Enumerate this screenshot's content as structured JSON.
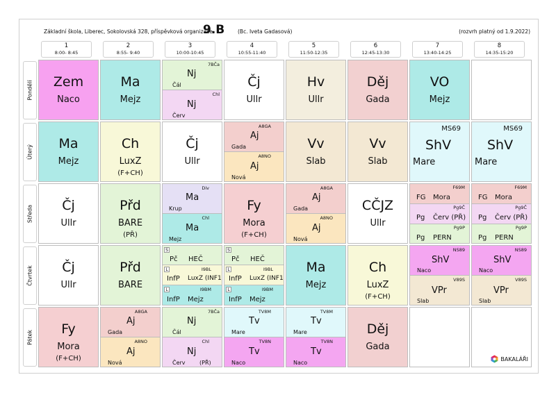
{
  "header": {
    "school": "Základní škola, Liberec, Sokolovská 328, příspěvková organizace",
    "class_name": "9.B",
    "teacher": "(Bc. Iveta Gadasová)",
    "valid_from": "(rozvrh platný od 1.9.2022)"
  },
  "periods": [
    {
      "num": "1",
      "time": "8:00- 8:45"
    },
    {
      "num": "2",
      "time": "8:55- 9:40"
    },
    {
      "num": "3",
      "time": "10:00-10:45"
    },
    {
      "num": "4",
      "time": "10:55-11:40"
    },
    {
      "num": "5",
      "time": "11:50-12:35"
    },
    {
      "num": "6",
      "time": "12:45-13:30"
    },
    {
      "num": "7",
      "time": "13:40-14:25"
    },
    {
      "num": "8",
      "time": "14:35-15:20"
    }
  ],
  "days": [
    "Pondělí",
    "Úterý",
    "Středa",
    "Čtvrtek",
    "Pátek"
  ],
  "colors": {
    "zem": "#f7a1f0",
    "ma": "#aeeae7",
    "ch": "#f8f8d8",
    "cj": "#ffffff",
    "hv": "#f3eede",
    "dej": "#f2d0d0",
    "vo": "#aeeae7",
    "aj_a": "#f3cfcd",
    "aj_b": "#fbe6bf",
    "vv": "#f3e8d3",
    "shv": "#e0f8fb",
    "fy": "#f5cfd1",
    "prd": "#e3f4d7",
    "nj_a": "#e3f4d7",
    "nj_b": "#f3d7f3",
    "ma_div": "#e5e0f5",
    "pc": "#e3f4d7",
    "infp_a": "#f8f8d8",
    "infp_b": "#aeeae7",
    "shv_nsp": "#f4a6f1",
    "vpr": "#f3e8d3",
    "tv_a": "#e0f8fb",
    "tv_b": "#f4a6f1",
    "fg": "#f3cfcd",
    "pg_a": "#f3d7f3",
    "pg_b": "#e3f4d7"
  },
  "timetable": {
    "mon": {
      "p1": {
        "subject": "Zem",
        "teacher": "Naco"
      },
      "p2": {
        "subject": "Ma",
        "teacher": "Mejz"
      },
      "p3": {
        "a": {
          "code": "7BČa",
          "subject": "Nj",
          "teacher": "Čál"
        },
        "b": {
          "code": "Chl",
          "subject": "Nj",
          "teacher": "Červ"
        }
      },
      "p4": {
        "subject": "Čj",
        "teacher": "Ullr"
      },
      "p5": {
        "subject": "Hv",
        "teacher": "Ullr"
      },
      "p6": {
        "subject": "Děj",
        "teacher": "Gada"
      },
      "p7": {
        "subject": "VO",
        "teacher": "Mejz"
      }
    },
    "tue": {
      "p1": {
        "subject": "Ma",
        "teacher": "Mejz"
      },
      "p2": {
        "subject": "Ch",
        "teacher": "LuxZ",
        "note": "(F+CH)"
      },
      "p3": {
        "subject": "Čj",
        "teacher": "Ullr"
      },
      "p4": {
        "a": {
          "code": "A8GA",
          "subject": "Aj",
          "teacher": "Gada"
        },
        "b": {
          "code": "A8NO",
          "subject": "Aj",
          "teacher": "Nová"
        }
      },
      "p5": {
        "subject": "Vv",
        "teacher": "Slab"
      },
      "p6": {
        "subject": "Vv",
        "teacher": "Slab"
      },
      "p7": {
        "code": "MS69",
        "subject": "ShV",
        "teacher": "Mare"
      },
      "p8": {
        "code": "MS69",
        "subject": "ShV",
        "teacher": "Mare"
      }
    },
    "wed": {
      "p1": {
        "subject": "Čj",
        "teacher": "Ullr"
      },
      "p2": {
        "subject": "Přd",
        "teacher": "BARE",
        "note": "(PŘ)"
      },
      "p3": {
        "a": {
          "code": "Div",
          "subject": "Ma",
          "teacher": "Krup"
        },
        "b": {
          "code": "Chl",
          "subject": "Ma",
          "teacher": "Mejz"
        }
      },
      "p4": {
        "subject": "Fy",
        "teacher": "Mora",
        "note": "(F+CH)"
      },
      "p5": {
        "a": {
          "code": "A8GA",
          "subject": "Aj",
          "teacher": "Gada"
        },
        "b": {
          "code": "A8NO",
          "subject": "Aj",
          "teacher": "Nová"
        }
      },
      "p6": {
        "subject": "CČJZ",
        "teacher": "Ullr"
      },
      "p7": {
        "r1": {
          "code": "F69M",
          "subject": "FG",
          "teacher": "Mora"
        },
        "r2": {
          "code": "Pg9Č",
          "subject": "Pg",
          "teacher": "Červ (PŘ)"
        },
        "r3": {
          "code": "Pg9P",
          "subject": "Pg",
          "teacher": "PERN"
        }
      },
      "p8": {
        "r1": {
          "code": "F69M",
          "subject": "FG",
          "teacher": "Mora"
        },
        "r2": {
          "code": "Pg9Č",
          "subject": "Pg",
          "teacher": "Červ (PŘ)"
        },
        "r3": {
          "code": "Pg9P",
          "subject": "Pg",
          "teacher": "PERN"
        }
      }
    },
    "thu": {
      "p1": {
        "subject": "Čj",
        "teacher": "Ullr"
      },
      "p2": {
        "subject": "Přd",
        "teacher": "BARE"
      },
      "p3": {
        "r1": {
          "tag": "S",
          "subject": "Pč",
          "teacher": "HEČ"
        },
        "r2": {
          "tag": "L",
          "code": "I9BL",
          "subject": "InfP",
          "teacher": "LuxZ (INF1)"
        },
        "r3": {
          "tag": "L",
          "code": "I9BM",
          "subject": "InfP",
          "teacher": "Mejz"
        }
      },
      "p4": {
        "r1": {
          "tag": "S",
          "subject": "Pč",
          "teacher": "HEČ"
        },
        "r2": {
          "tag": "L",
          "code": "I9BL",
          "subject": "InfP",
          "teacher": "LuxZ (INF1)"
        },
        "r3": {
          "tag": "L",
          "code": "I9BM",
          "subject": "InfP",
          "teacher": "Mejz"
        }
      },
      "p5": {
        "subject": "Ma",
        "teacher": "Mejz"
      },
      "p6": {
        "subject": "Ch",
        "teacher": "LuxZ",
        "note": "(F+CH)"
      },
      "p7": {
        "a": {
          "code": "NS89",
          "subject": "ShV",
          "teacher": "Naco"
        },
        "b": {
          "code": "V89S",
          "subject": "VPr",
          "teacher": "Slab"
        }
      },
      "p8": {
        "a": {
          "code": "NS89",
          "subject": "ShV",
          "teacher": "Naco"
        },
        "b": {
          "code": "V89S",
          "subject": "VPr",
          "teacher": "Slab"
        }
      }
    },
    "fri": {
      "p1": {
        "subject": "Fy",
        "teacher": "Mora",
        "note": "(F+CH)"
      },
      "p2": {
        "a": {
          "code": "A8GA",
          "subject": "Aj",
          "teacher": "Gada"
        },
        "b": {
          "code": "A8NO",
          "subject": "Aj",
          "teacher": "Nová"
        }
      },
      "p3": {
        "a": {
          "code": "7BČa",
          "subject": "Nj",
          "teacher": "Čál"
        },
        "b": {
          "code": "Chl",
          "subject": "Nj",
          "teacher": "Červ",
          "note": "(PŘ)"
        }
      },
      "p4": {
        "a": {
          "code": "TV8M",
          "subject": "Tv",
          "teacher": "Mare"
        },
        "b": {
          "code": "TV8N",
          "subject": "Tv",
          "teacher": "Naco"
        }
      },
      "p5": {
        "a": {
          "code": "TV8M",
          "subject": "Tv",
          "teacher": "Mare"
        },
        "b": {
          "code": "TV8N",
          "subject": "Tv",
          "teacher": "Naco"
        }
      },
      "p6": {
        "subject": "Děj",
        "teacher": "Gada"
      }
    }
  },
  "logo": {
    "text": "BAKALÁŘI",
    "icon": "bakalari-logo-icon"
  }
}
